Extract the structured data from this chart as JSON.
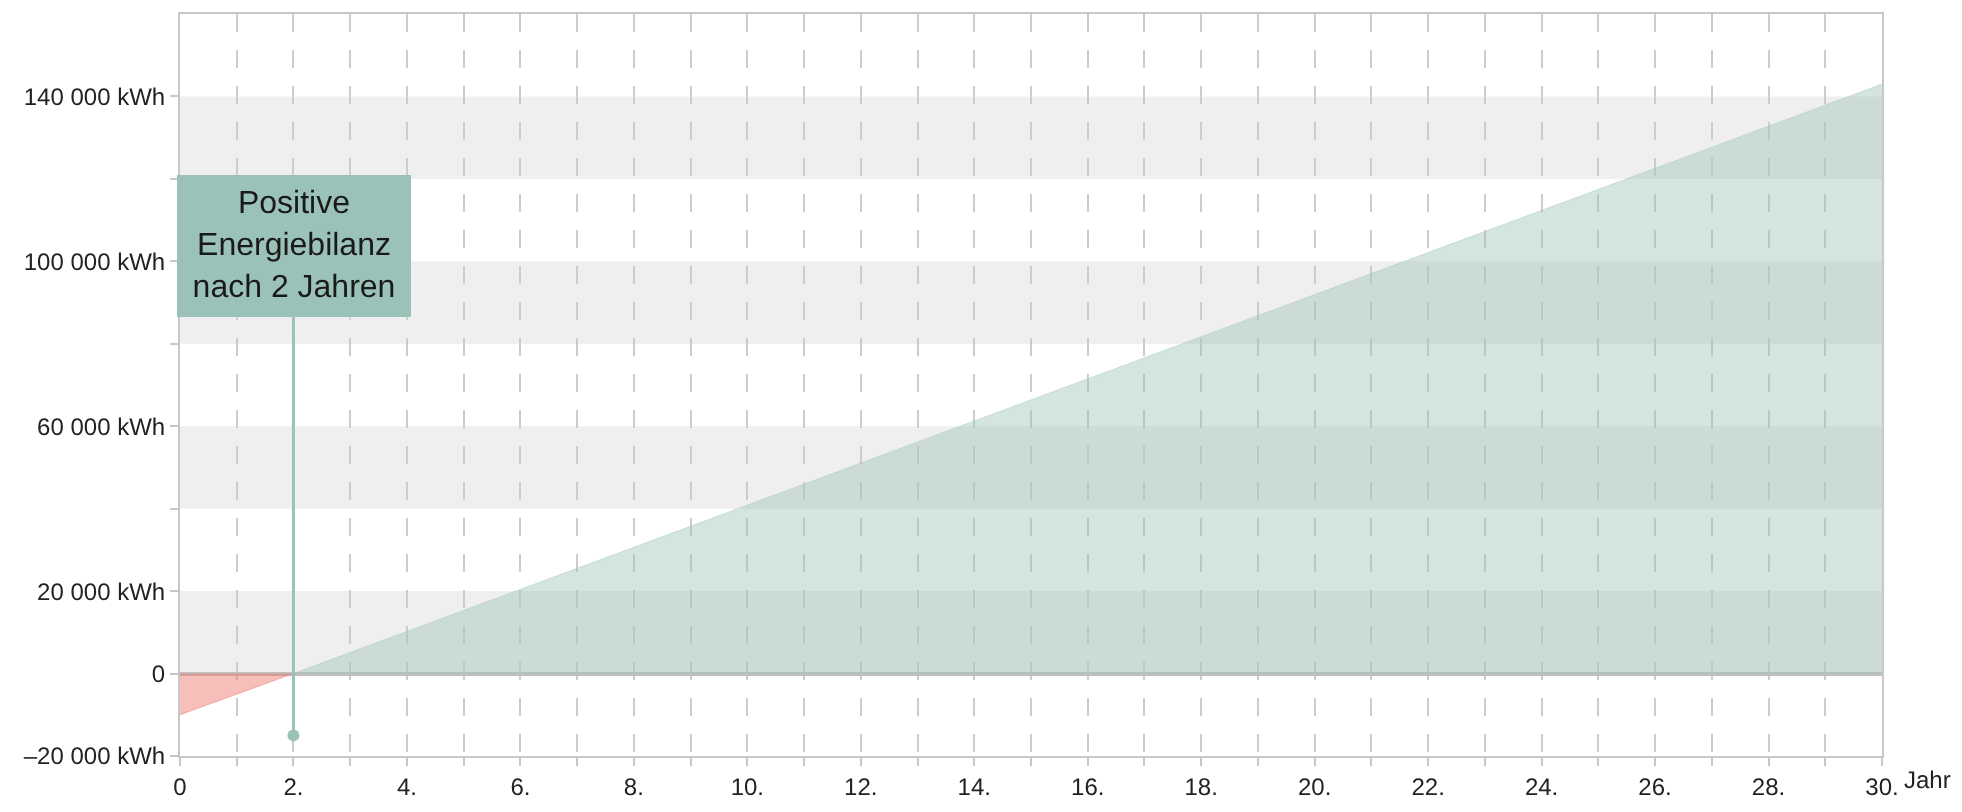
{
  "chart_data": {
    "type": "area",
    "xlabel": "Jahr",
    "series": [
      {
        "color": "#ee7265",
        "x": [
          0,
          2
        ],
        "values": [
          -10000,
          0
        ]
      },
      {
        "color": "#9fc6ba",
        "x": [
          2,
          30
        ],
        "values": [
          0,
          143000
        ]
      }
    ],
    "xlim": [
      0,
      30
    ],
    "ylim": [
      -20000,
      160000
    ],
    "xticks": [
      0,
      {
        "value": 1,
        "label": null
      },
      {
        "value": 2,
        "label": "2."
      },
      {
        "value": 3,
        "label": null
      },
      {
        "value": 4,
        "label": "4."
      },
      {
        "value": 5,
        "label": null
      },
      {
        "value": 6,
        "label": "6."
      },
      {
        "value": 7,
        "label": null
      },
      {
        "value": 8,
        "label": "8."
      },
      {
        "value": 9,
        "label": null
      },
      {
        "value": 10,
        "label": "10."
      },
      {
        "value": 11,
        "label": null
      },
      {
        "value": 12,
        "label": "12."
      },
      {
        "value": 13,
        "label": null
      },
      {
        "value": 14,
        "label": "14."
      },
      {
        "value": 15,
        "label": null
      },
      {
        "value": 16,
        "label": "16."
      },
      {
        "value": 17,
        "label": null
      },
      {
        "value": 18,
        "label": "18."
      },
      {
        "value": 19,
        "label": null
      },
      {
        "value": 20,
        "label": "20."
      },
      {
        "value": 21,
        "label": null
      },
      {
        "value": 22,
        "label": "22."
      },
      {
        "value": 23,
        "label": null
      },
      {
        "value": 24,
        "label": "24."
      },
      {
        "value": 25,
        "label": null
      },
      {
        "value": 26,
        "label": "26."
      },
      {
        "value": 27,
        "label": null
      },
      {
        "value": 28,
        "label": "28."
      },
      {
        "value": 29,
        "label": null
      },
      {
        "value": 30,
        "label": "30."
      }
    ],
    "yticks": [
      {
        "value": -20000,
        "label": "–20 000 kWh"
      },
      0,
      {
        "value": 20000,
        "label": "20 000 kWh"
      },
      {
        "value": 40000,
        "label": null
      },
      {
        "value": 60000,
        "label": "60 000 kWh"
      },
      {
        "value": 80000,
        "label": null
      },
      {
        "value": 100000,
        "label": "100 000 kWh"
      },
      {
        "value": 120000,
        "label": null
      },
      {
        "value": 140000,
        "label": "140 000 kWh"
      }
    ],
    "bands": [
      {
        "axis": "y",
        "from": 0,
        "to": 20000,
        "color": "#efefef"
      },
      {
        "axis": "y",
        "from": 40000,
        "to": 60000,
        "color": "#efefef"
      },
      {
        "axis": "y",
        "from": 80000,
        "to": 100000,
        "color": "#efefef"
      },
      {
        "axis": "y",
        "from": 120000,
        "to": 140000,
        "color": "#efefef"
      }
    ],
    "grid": "x",
    "line_style": "solid",
    "annotations": [
      {
        "text": "Positive\nEnergiebilanz\nnach 2 Jahren",
        "x": 2,
        "y": -15000
      }
    ]
  }
}
